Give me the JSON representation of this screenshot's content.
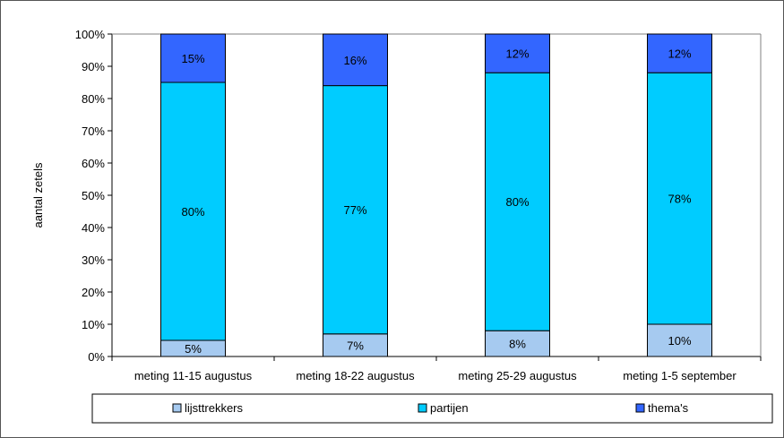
{
  "chart_data": {
    "type": "bar",
    "stacked": true,
    "percent": true,
    "ylabel": "aantal zetels",
    "xlabel": "",
    "ylim": [
      0,
      100
    ],
    "yticks": [
      "0%",
      "10%",
      "20%",
      "30%",
      "40%",
      "50%",
      "60%",
      "70%",
      "80%",
      "90%",
      "100%"
    ],
    "grid": false,
    "legend_position": "bottom",
    "categories": [
      "meting 11-15 augustus",
      "meting 18-22 augustus",
      "meting 25-29 augustus",
      "meting 1-5 september"
    ],
    "series": [
      {
        "name": "lijsttrekkers",
        "values": [
          5,
          7,
          8,
          10
        ],
        "labels": [
          "5%",
          "7%",
          "8%",
          "10%"
        ],
        "color": "#a6caf0"
      },
      {
        "name": "partijen",
        "values": [
          80,
          77,
          80,
          78
        ],
        "labels": [
          "80%",
          "77%",
          "80%",
          "78%"
        ],
        "color": "#00ccff"
      },
      {
        "name": "thema's",
        "values": [
          15,
          16,
          12,
          12
        ],
        "labels": [
          "15%",
          "16%",
          "12%",
          "12%"
        ],
        "color": "#3366ff"
      }
    ]
  }
}
